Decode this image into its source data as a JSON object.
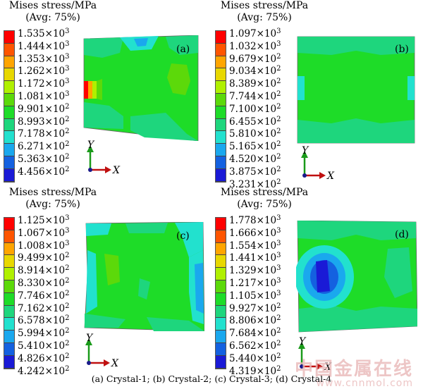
{
  "panels": [
    {
      "title_line1": "Mises stress/MPa",
      "title_line2": "(Avg: 75%)",
      "label": "(a)",
      "legend": [
        {
          "value": "1.535×10",
          "exp": "3",
          "color": "#ff0000"
        },
        {
          "value": "1.444×10",
          "exp": "3",
          "color": "#ff5500"
        },
        {
          "value": "1.353×10",
          "exp": "3",
          "color": "#ffa500"
        },
        {
          "value": "1.262×10",
          "exp": "3",
          "color": "#e8d800"
        },
        {
          "value": "1.172×10",
          "exp": "3",
          "color": "#b0f000"
        },
        {
          "value": "1.081×10",
          "exp": "3",
          "color": "#5cd90a"
        },
        {
          "value": "9.901×10",
          "exp": "2",
          "color": "#1edc28"
        },
        {
          "value": "8.993×10",
          "exp": "2",
          "color": "#1ed67d"
        },
        {
          "value": "7.178×10",
          "exp": "2",
          "color": "#22e1ce"
        },
        {
          "value": "6.271×10",
          "exp": "2",
          "color": "#1aa8ee"
        },
        {
          "value": "5.363×10",
          "exp": "2",
          "color": "#1461e0"
        },
        {
          "value": "4.456×10",
          "exp": "2",
          "color": "#1a1ad6"
        }
      ]
    },
    {
      "title_line1": "Mises stress/MPa",
      "title_line2": "(Avg: 75%)",
      "label": "(b)",
      "legend": [
        {
          "value": "1.097×10",
          "exp": "3",
          "color": "#ff0000"
        },
        {
          "value": "1.032×10",
          "exp": "3",
          "color": "#ff5500"
        },
        {
          "value": "9.679×10",
          "exp": "2",
          "color": "#ffa500"
        },
        {
          "value": "9.034×10",
          "exp": "2",
          "color": "#e8d800"
        },
        {
          "value": "8.389×10",
          "exp": "2",
          "color": "#b0f000"
        },
        {
          "value": "7.744×10",
          "exp": "2",
          "color": "#5cd90a"
        },
        {
          "value": "7.100×10",
          "exp": "2",
          "color": "#1edc28"
        },
        {
          "value": "6.455×10",
          "exp": "2",
          "color": "#1ed67d"
        },
        {
          "value": "5.810×10",
          "exp": "2",
          "color": "#22e1ce"
        },
        {
          "value": "5.165×10",
          "exp": "2",
          "color": "#1aa8ee"
        },
        {
          "value": "4.520×10",
          "exp": "2",
          "color": "#1461e0"
        },
        {
          "value": "3.875×10",
          "exp": "2",
          "color": "#1a1ad6"
        },
        {
          "value": "3.231×10",
          "exp": "2",
          "color": ""
        }
      ]
    },
    {
      "title_line1": "Mises stress/MPa",
      "title_line2": "(Avg: 75%)",
      "label": "(c)",
      "legend": [
        {
          "value": "1.125×10",
          "exp": "3",
          "color": "#ff0000"
        },
        {
          "value": "1.067×10",
          "exp": "3",
          "color": "#ff5500"
        },
        {
          "value": "1.008×10",
          "exp": "3",
          "color": "#ffa500"
        },
        {
          "value": "9.499×10",
          "exp": "2",
          "color": "#e8d800"
        },
        {
          "value": "8.914×10",
          "exp": "2",
          "color": "#b0f000"
        },
        {
          "value": "8.330×10",
          "exp": "2",
          "color": "#5cd90a"
        },
        {
          "value": "7.746×10",
          "exp": "2",
          "color": "#1edc28"
        },
        {
          "value": "7.162×10",
          "exp": "2",
          "color": "#1ed67d"
        },
        {
          "value": "6.578×10",
          "exp": "2",
          "color": "#22e1ce"
        },
        {
          "value": "5.994×10",
          "exp": "2",
          "color": "#1aa8ee"
        },
        {
          "value": "5.410×10",
          "exp": "2",
          "color": "#1461e0"
        },
        {
          "value": "4.826×10",
          "exp": "2",
          "color": "#1a1ad6"
        },
        {
          "value": "4.242×10",
          "exp": "2",
          "color": ""
        }
      ]
    },
    {
      "title_line1": "Mises stress/MPa",
      "title_line2": "(Avg: 75%)",
      "label": "(d)",
      "legend": [
        {
          "value": "1.778×10",
          "exp": "3",
          "color": "#ff0000"
        },
        {
          "value": "1.666×10",
          "exp": "3",
          "color": "#ff5500"
        },
        {
          "value": "1.554×10",
          "exp": "3",
          "color": "#ffa500"
        },
        {
          "value": "1.441×10",
          "exp": "3",
          "color": "#e8d800"
        },
        {
          "value": "1.329×10",
          "exp": "3",
          "color": "#b0f000"
        },
        {
          "value": "1.217×10",
          "exp": "3",
          "color": "#5cd90a"
        },
        {
          "value": "1.105×10",
          "exp": "3",
          "color": "#1edc28"
        },
        {
          "value": "9.927×10",
          "exp": "2",
          "color": "#1ed67d"
        },
        {
          "value": "8.806×10",
          "exp": "2",
          "color": "#22e1ce"
        },
        {
          "value": "7.684×10",
          "exp": "2",
          "color": "#1aa8ee"
        },
        {
          "value": "6.562×10",
          "exp": "2",
          "color": "#1461e0"
        },
        {
          "value": "5.440×10",
          "exp": "2",
          "color": "#1a1ad6"
        },
        {
          "value": "4.319×10",
          "exp": "2",
          "color": ""
        }
      ]
    }
  ],
  "axis_y": "Y",
  "axis_x": "X",
  "caption": "(a) Crystal-1; (b) Crystal-2; (c) Crystal-3; (d) Crystal-4",
  "watermark_cn": "中国金属在线",
  "watermark_url": "www.cnnmol.com"
}
